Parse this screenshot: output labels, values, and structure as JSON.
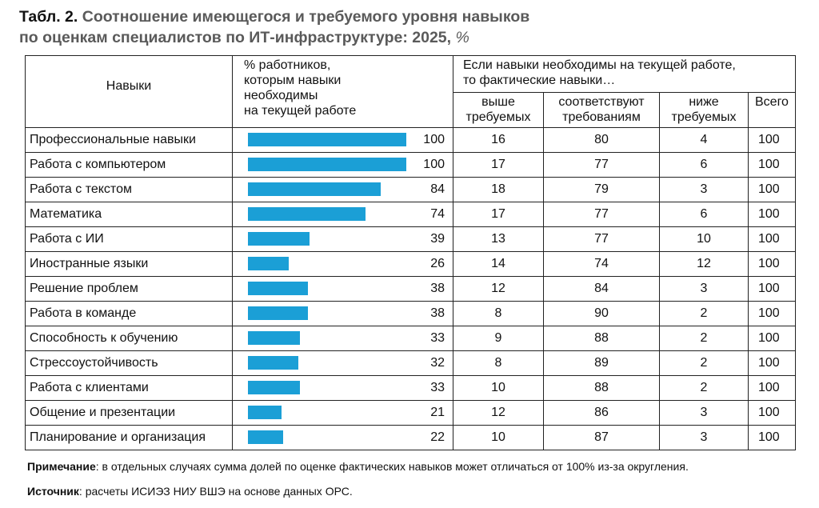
{
  "title": {
    "prefix": "Табл. 2.",
    "line1": "Соотношение имеющегося и требуемого уровня навыков",
    "line2": "по оценкам специалистов по ИТ-инфраструктуре: 2025,",
    "unit": "%"
  },
  "table": {
    "col_skill": "Навыки",
    "col_share_lines": [
      "% работников,",
      "которым навыки",
      "необходимы",
      "на текущей работе"
    ],
    "col_group_lines": [
      "Если навыки необходимы на текущей работе,",
      "то фактические навыки…"
    ],
    "sub_above_lines": [
      "выше",
      "требуемых"
    ],
    "sub_match_lines": [
      "соответствуют",
      "требованиям"
    ],
    "sub_below_lines": [
      "ниже",
      "требуемых"
    ],
    "sub_total": "Всего",
    "bar_color": "#1b9fd6",
    "rows": [
      {
        "name": "Профессиональные навыки",
        "share": "100",
        "above": "16",
        "match": "80",
        "below": "4",
        "total": "100"
      },
      {
        "name": "Работа с компьютером",
        "share": "100",
        "above": "17",
        "match": "77",
        "below": "6",
        "total": "100"
      },
      {
        "name": "Работа с текстом",
        "share": "84",
        "above": "18",
        "match": "79",
        "below": "3",
        "total": "100"
      },
      {
        "name": "Математика",
        "share": "74",
        "above": "17",
        "match": "77",
        "below": "6",
        "total": "100"
      },
      {
        "name": "Работа с ИИ",
        "share": "39",
        "above": "13",
        "match": "77",
        "below": "10",
        "total": "100"
      },
      {
        "name": "Иностранные языки",
        "share": "26",
        "above": "14",
        "match": "74",
        "below": "12",
        "total": "100"
      },
      {
        "name": "Решение проблем",
        "share": "38",
        "above": "12",
        "match": "84",
        "below": "3",
        "total": "100"
      },
      {
        "name": "Работа в команде",
        "share": "38",
        "above": "8",
        "match": "90",
        "below": "2",
        "total": "100"
      },
      {
        "name": "Способность к обучению",
        "share": "33",
        "above": "9",
        "match": "88",
        "below": "2",
        "total": "100"
      },
      {
        "name": "Стрессоустойчивость",
        "share": "32",
        "above": "8",
        "match": "89",
        "below": "2",
        "total": "100"
      },
      {
        "name": "Работа с клиентами",
        "share": "33",
        "above": "10",
        "match": "88",
        "below": "2",
        "total": "100"
      },
      {
        "name": "Общение и презентации",
        "share": "21",
        "above": "12",
        "match": "86",
        "below": "3",
        "total": "100"
      },
      {
        "name": "Планирование и организация",
        "share": "22",
        "above": "10",
        "match": "87",
        "below": "3",
        "total": "100"
      }
    ]
  },
  "note": {
    "label": "Примечание",
    "text": ": в отдельных случаях сумма долей по оценке фактических навыков может отличаться от 100% из-за округления."
  },
  "source": {
    "label": "Источник",
    "text": ": расчеты ИСИЭЗ НИУ ВШЭ на основе данных ОРС."
  }
}
